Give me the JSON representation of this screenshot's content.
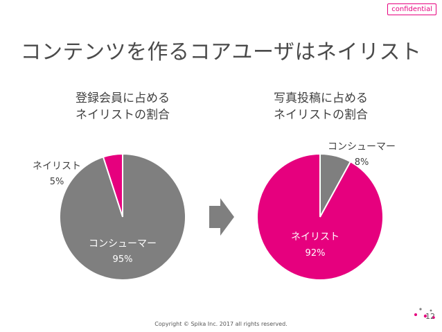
{
  "header": {
    "confidential": "confidential",
    "title": "コンテンツを作るコアユーザはネイリスト"
  },
  "chart_data": [
    {
      "type": "pie",
      "title_lines": [
        "登録会員に占める",
        "ネイリストの割合"
      ],
      "slices": [
        {
          "label": "ネイリスト",
          "value": 5,
          "value_label": "5%",
          "color": "#e6007e"
        },
        {
          "label": "コンシューマー",
          "value": 95,
          "value_label": "95%",
          "color": "#7f7f7f"
        }
      ]
    },
    {
      "type": "pie",
      "title_lines": [
        "写真投稿に占める",
        "ネイリストの割合"
      ],
      "slices": [
        {
          "label": "コンシューマー",
          "value": 8,
          "value_label": "8%",
          "color": "#7f7f7f"
        },
        {
          "label": "ネイリスト",
          "value": 92,
          "value_label": "92%",
          "color": "#e6007e"
        }
      ]
    }
  ],
  "arrow_color": "#7f7f7f",
  "footer": {
    "copyright": "Copyright © Spika Inc. 2017 all rights reserved.",
    "page_number": "12"
  }
}
